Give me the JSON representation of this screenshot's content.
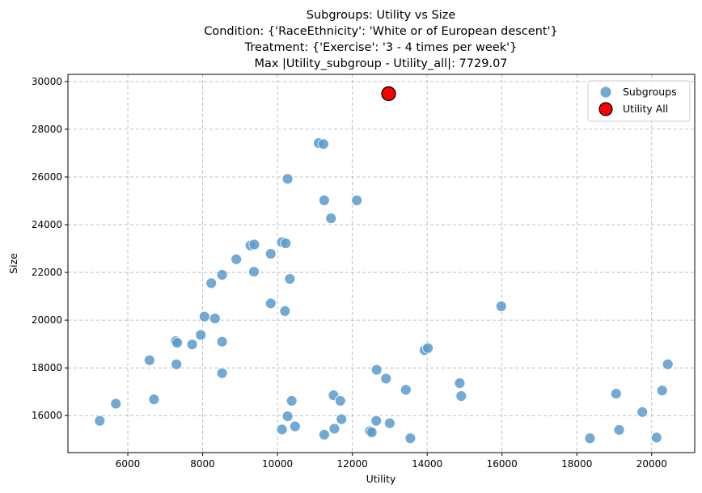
{
  "chart_data": {
    "type": "scatter",
    "title_lines": [
      "Subgroups: Utility vs Size",
      "Condition: {'RaceEthnicity': 'White or of European descent'}",
      "Treatment: {'Exercise': '3 - 4 times per week'}",
      "Max |Utility_subgroup - Utility_all|: 7729.07"
    ],
    "xlabel": "Utility",
    "ylabel": "Size",
    "xlim": [
      4400,
      21150
    ],
    "ylim": [
      14450,
      30300
    ],
    "xticks": [
      6000,
      8000,
      10000,
      12000,
      14000,
      16000,
      18000,
      20000
    ],
    "yticks": [
      16000,
      18000,
      20000,
      22000,
      24000,
      26000,
      28000,
      30000
    ],
    "grid": true,
    "legend_position": "top-right",
    "series": [
      {
        "name": "Subgroups",
        "color": "#5b9bcb",
        "points": [
          [
            5250,
            15780
          ],
          [
            5680,
            16500
          ],
          [
            6580,
            18320
          ],
          [
            6700,
            16680
          ],
          [
            7280,
            19120
          ],
          [
            7320,
            19050
          ],
          [
            7300,
            18150
          ],
          [
            7720,
            18980
          ],
          [
            7950,
            19380
          ],
          [
            8050,
            20150
          ],
          [
            8230,
            21550
          ],
          [
            8330,
            20070
          ],
          [
            8520,
            21900
          ],
          [
            8520,
            19100
          ],
          [
            8520,
            17780
          ],
          [
            8900,
            22550
          ],
          [
            9280,
            23130
          ],
          [
            9380,
            23170
          ],
          [
            9370,
            22030
          ],
          [
            9820,
            22780
          ],
          [
            9820,
            20700
          ],
          [
            10120,
            23270
          ],
          [
            10220,
            23220
          ],
          [
            10200,
            20380
          ],
          [
            10270,
            25920
          ],
          [
            10330,
            21730
          ],
          [
            10270,
            15970
          ],
          [
            10380,
            16620
          ],
          [
            10120,
            15420
          ],
          [
            10470,
            15550
          ],
          [
            11100,
            27420
          ],
          [
            11230,
            27380
          ],
          [
            11250,
            25020
          ],
          [
            11430,
            24270
          ],
          [
            12120,
            25020
          ],
          [
            11250,
            15200
          ],
          [
            11500,
            16850
          ],
          [
            11520,
            15450
          ],
          [
            11680,
            16620
          ],
          [
            11710,
            15850
          ],
          [
            12470,
            15350
          ],
          [
            12520,
            15300
          ],
          [
            12640,
            15780
          ],
          [
            12650,
            17920
          ],
          [
            12900,
            17550
          ],
          [
            13000,
            15680
          ],
          [
            13430,
            17080
          ],
          [
            13550,
            15050
          ],
          [
            13930,
            18740
          ],
          [
            14020,
            18830
          ],
          [
            14870,
            17360
          ],
          [
            14910,
            16820
          ],
          [
            15980,
            20580
          ],
          [
            18350,
            15050
          ],
          [
            19050,
            16920
          ],
          [
            19130,
            15400
          ],
          [
            19750,
            16150
          ],
          [
            20130,
            15080
          ],
          [
            20280,
            17050
          ],
          [
            20430,
            18150
          ]
        ]
      },
      {
        "name": "Utility All",
        "color": "#ff0000",
        "points": [
          [
            12970,
            29490
          ]
        ]
      }
    ]
  }
}
